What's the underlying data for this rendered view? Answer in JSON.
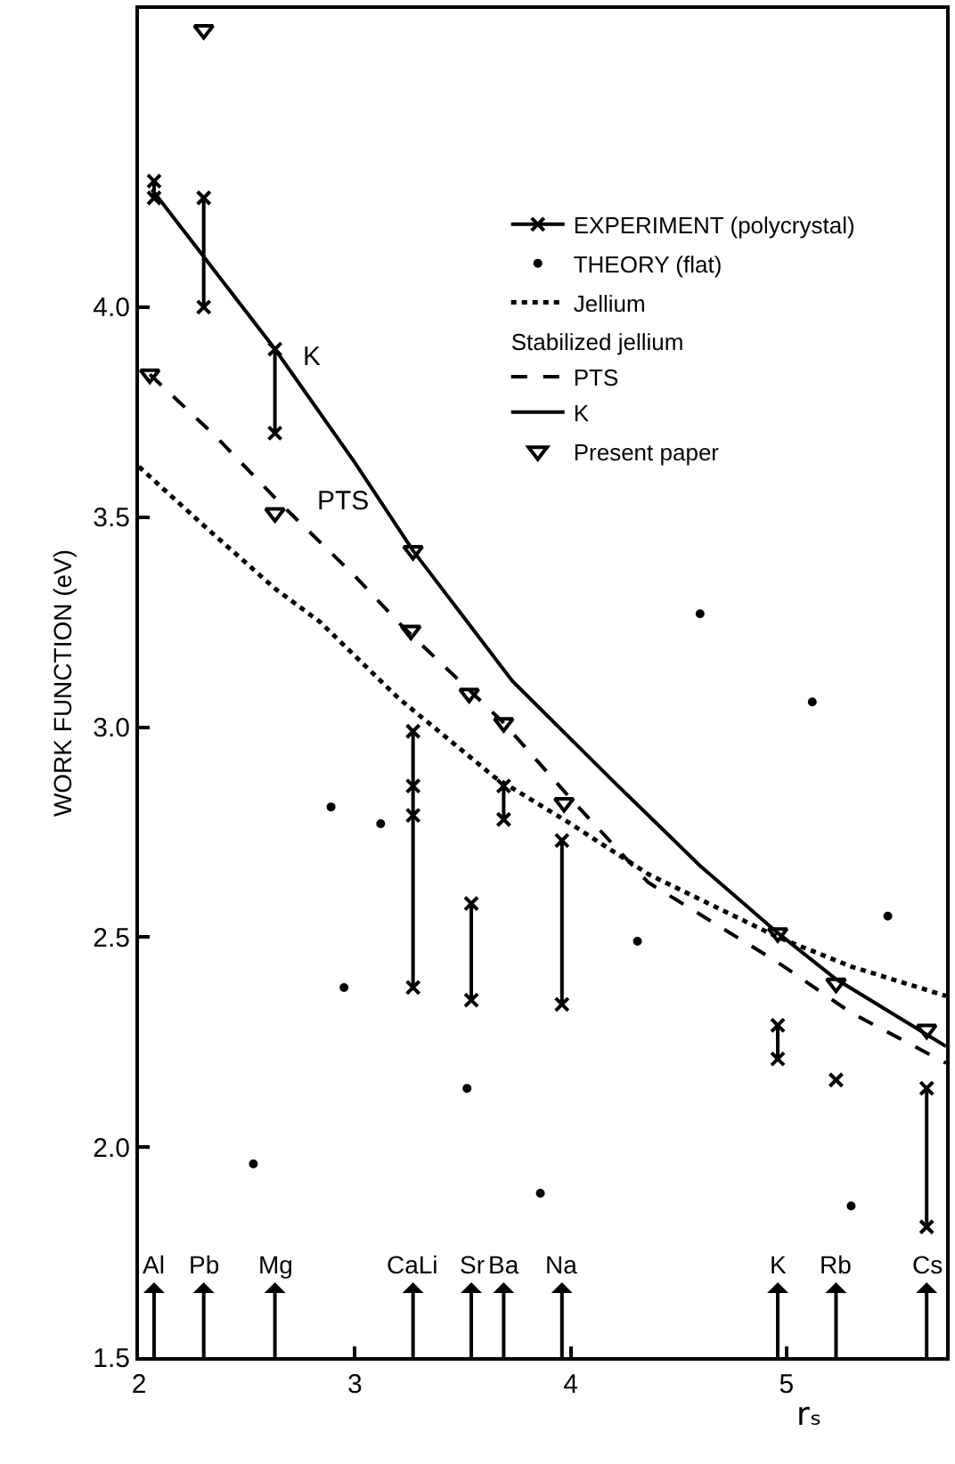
{
  "chart_data": {
    "type": "scatter",
    "xlabel": "rₛ",
    "ylabel": "WORK FUNCTION (eV)",
    "xlim": [
      2,
      5.74
    ],
    "ylim": [
      1.5,
      4.71
    ],
    "xticks": [
      2,
      3,
      4,
      5
    ],
    "yticks": [
      1.5,
      {
        "value": 2,
        "label": "2.0"
      },
      2.5,
      {
        "value": 3,
        "label": "3.0"
      },
      3.5,
      {
        "value": 4,
        "label": "4.0"
      }
    ],
    "grid": false,
    "legend": "top right",
    "series": [
      {
        "name": "EXPERIMENT (polycrystal)",
        "type": "line",
        "marker": "cross",
        "line_style": "solid",
        "color": "#000000",
        "x": [
          2.07,
          2.07
        ],
        "values": [
          4.26,
          4.3
        ]
      },
      {
        "type": "line",
        "marker": "cross",
        "line_style": "solid",
        "color": "#000000",
        "x": [
          2.3,
          2.3
        ],
        "values": [
          4.0,
          4.26
        ]
      },
      {
        "type": "line",
        "marker": "cross",
        "line_style": "solid",
        "color": "#000000",
        "x": [
          2.63,
          2.63
        ],
        "values": [
          3.7,
          3.9
        ]
      },
      {
        "type": "line",
        "marker": "cross",
        "line_style": "solid",
        "color": "#000000",
        "x": [
          3.27,
          3.27,
          3.27,
          3.27
        ],
        "values": [
          2.38,
          2.79,
          2.86,
          2.99
        ]
      },
      {
        "type": "line",
        "marker": "cross",
        "line_style": "solid",
        "color": "#000000",
        "x": [
          3.54,
          3.54
        ],
        "values": [
          2.35,
          2.58
        ]
      },
      {
        "type": "line",
        "marker": "cross",
        "line_style": "solid",
        "color": "#000000",
        "x": [
          3.69,
          3.69
        ],
        "values": [
          2.78,
          2.86
        ]
      },
      {
        "type": "line",
        "marker": "cross",
        "line_style": "solid",
        "color": "#000000",
        "x": [
          3.96,
          3.96
        ],
        "values": [
          2.34,
          2.73
        ]
      },
      {
        "type": "line",
        "marker": "cross",
        "line_style": "solid",
        "color": "#000000",
        "x": [
          4.96,
          4.96
        ],
        "values": [
          2.21,
          2.29
        ]
      },
      {
        "type": "line",
        "marker": "cross",
        "line_style": "solid",
        "color": "#000000",
        "x": [
          5.23
        ],
        "values": [
          2.16
        ]
      },
      {
        "type": "line",
        "marker": "cross",
        "line_style": "solid",
        "color": "#000000",
        "x": [
          5.65,
          5.65
        ],
        "values": [
          1.81,
          2.14
        ]
      },
      {
        "name": "THEORY (flat)",
        "marker": "circle",
        "color": "#000000",
        "x": [
          2.53,
          2.89,
          2.95,
          3.12,
          3.52,
          3.86,
          4.31,
          4.6,
          5.12,
          5.3,
          5.47
        ],
        "values": [
          1.96,
          2.81,
          2.38,
          2.77,
          2.14,
          1.89,
          2.49,
          3.27,
          3.06,
          1.86,
          2.55
        ]
      },
      {
        "name": "Jellium",
        "type": "line",
        "marker": "none",
        "line_style": "dotted",
        "color": "#000000",
        "x": [
          2.0,
          2.3,
          2.63,
          2.84,
          3.2,
          3.65,
          4.0,
          4.36,
          4.96,
          5.3,
          5.74
        ],
        "values": [
          3.62,
          3.48,
          3.33,
          3.25,
          3.07,
          2.88,
          2.77,
          2.65,
          2.5,
          2.43,
          2.36
        ]
      },
      {
        "name": "PTS",
        "type": "line",
        "marker": "none",
        "line_style": "dashed",
        "color": "#000000",
        "x": [
          2.05,
          2.36,
          2.66,
          3.0,
          3.22,
          3.69,
          4.0,
          4.36,
          4.96,
          5.3,
          5.74
        ],
        "values": [
          3.84,
          3.69,
          3.53,
          3.36,
          3.24,
          3.01,
          2.83,
          2.63,
          2.44,
          2.32,
          2.2
        ]
      },
      {
        "name": "K",
        "type": "line",
        "marker": "none",
        "line_style": "solid",
        "color": "#000000",
        "x": [
          2.06,
          2.3,
          2.63,
          3.0,
          3.27,
          3.73,
          4.2,
          4.6,
          4.96,
          5.23,
          5.74
        ],
        "values": [
          4.28,
          4.12,
          3.9,
          3.63,
          3.42,
          3.11,
          2.87,
          2.67,
          2.51,
          2.4,
          2.24
        ]
      },
      {
        "name": "Present paper",
        "marker": "triangle",
        "color": "#000000",
        "x": [
          2.05,
          2.3,
          2.63,
          3.26,
          3.27,
          3.53,
          3.69,
          3.97,
          4.96,
          5.23,
          5.65
        ],
        "values": [
          3.84,
          4.66,
          3.51,
          3.23,
          3.42,
          3.08,
          3.01,
          2.82,
          2.51,
          2.39,
          2.28
        ]
      }
    ],
    "annotations": [
      "Stabilized jellium",
      "K",
      "PTS",
      "Al",
      "Pb",
      "Mg",
      "CaLi",
      "Sr",
      "Ba",
      "Na",
      "K",
      "Rb",
      "Cs"
    ]
  }
}
